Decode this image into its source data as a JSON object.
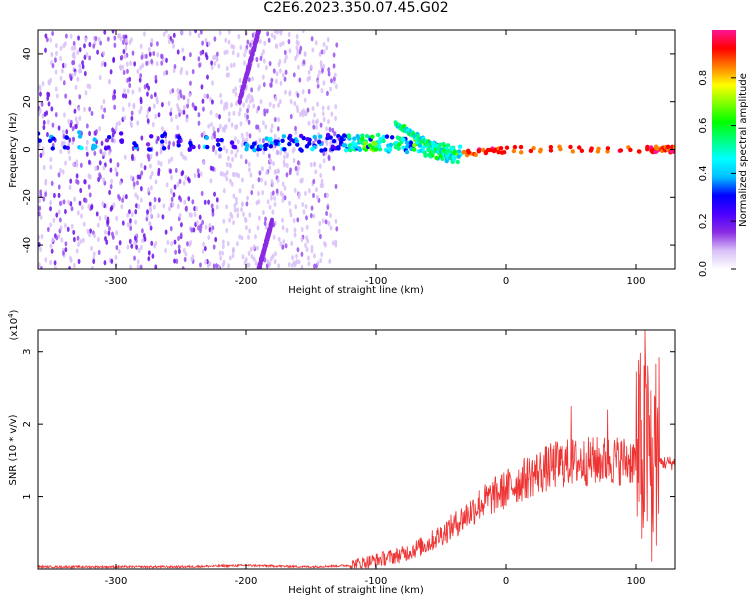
{
  "title": "C2E6.2023.350.07.45.G02",
  "chart_data": [
    {
      "type": "heatmap",
      "xlabel": "Height of straight line (km)",
      "ylabel": "Frequency (Hz)",
      "xlim": [
        -360,
        130
      ],
      "ylim": [
        -50,
        50
      ],
      "x_ticks": [
        -300,
        -200,
        -100,
        0,
        100
      ],
      "y_ticks": [
        -40,
        -20,
        0,
        20,
        40
      ],
      "colorbar": {
        "label": "Normalized spectral amplitude",
        "range": [
          0,
          1
        ],
        "ticks": [
          "0.0",
          "0.2",
          "0.4",
          "0.6",
          "0.8"
        ],
        "colors": [
          "#ffffff",
          "#d8c0f8",
          "#8a2be2",
          "#4b00ff",
          "#0000ff",
          "#00bfff",
          "#00ffff",
          "#00ff7f",
          "#00ff00",
          "#7fff00",
          "#ffff00",
          "#ff8000",
          "#ff0000",
          "#ff1493"
        ]
      },
      "features": [
        {
          "name": "main-band",
          "x": [
            -360,
            -200,
            -130,
            -100,
            -60,
            -40,
            0,
            110,
            130
          ],
          "freq": [
            4,
            3,
            3,
            3,
            0,
            -2,
            0,
            0,
            0
          ]
        },
        {
          "name": "upper-branch",
          "x": [
            -85,
            -70,
            -55,
            -40
          ],
          "freq": [
            11,
            6,
            1,
            -4
          ]
        },
        {
          "name": "diagonal-upper",
          "x": [
            -205,
            -190
          ],
          "freq": [
            20,
            50
          ]
        },
        {
          "name": "diagonal-lower",
          "x": [
            -190,
            -180
          ],
          "freq": [
            -50,
            -30
          ]
        }
      ]
    },
    {
      "type": "line",
      "xlabel": "Height of straight line (km)",
      "ylabel": "SNR (10 * v/v)",
      "y_multiplier": "(x10",
      "y_multiplier_exp": "4",
      "y_multiplier_close": ")",
      "xlim": [
        -360,
        130
      ],
      "ylim": [
        0,
        3.3
      ],
      "x_ticks": [
        -300,
        -200,
        -100,
        0,
        100
      ],
      "y_ticks": [
        1,
        2,
        3
      ],
      "series": [
        {
          "color": "#ee3333",
          "x": [
            -360,
            -300,
            -250,
            -200,
            -150,
            -120,
            -100,
            -80,
            -60,
            -40,
            -20,
            0,
            20,
            40,
            60,
            80,
            100,
            105,
            110,
            115,
            120,
            130
          ],
          "y": [
            0.03,
            0.03,
            0.03,
            0.05,
            0.03,
            0.05,
            0.12,
            0.2,
            0.35,
            0.6,
            0.9,
            1.1,
            1.3,
            1.45,
            1.48,
            1.5,
            1.5,
            1.4,
            1.5,
            1.48,
            1.47,
            1.46
          ]
        }
      ],
      "peaks": [
        {
          "x": 50,
          "y": 2.25
        },
        {
          "x": 78,
          "y": 2.2
        },
        {
          "x": 107,
          "y": 3.3
        },
        {
          "x": 112,
          "y": 0.1
        }
      ]
    }
  ]
}
